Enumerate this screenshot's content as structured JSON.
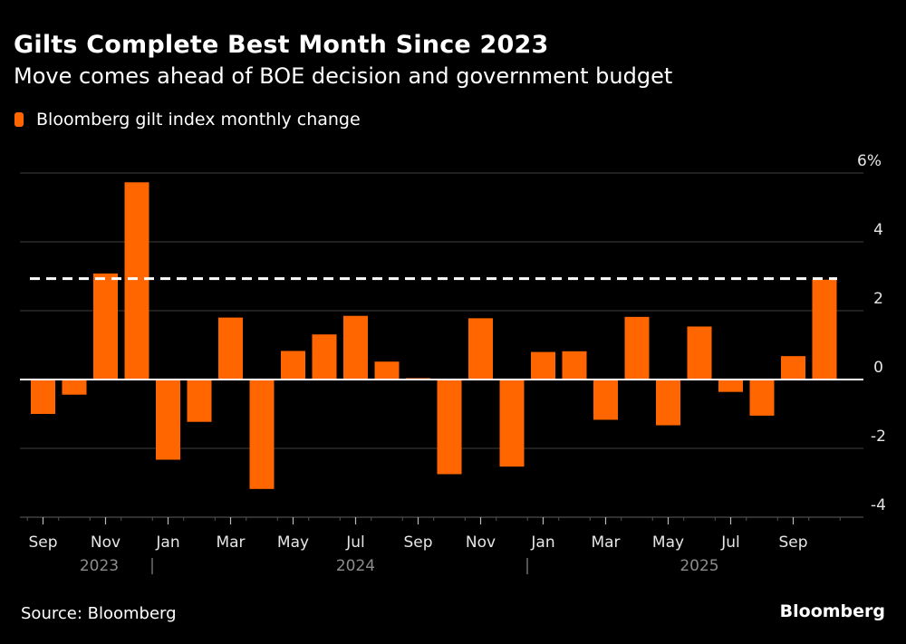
{
  "header": {
    "title": "Gilts Complete Best Month Since 2023",
    "subtitle": "Move comes ahead of BOE decision and government budget"
  },
  "legend": {
    "label": "Bloomberg gilt index monthly change",
    "color": "#ff6600"
  },
  "footer": {
    "source": "Source: Bloomberg",
    "brand": "Bloomberg"
  },
  "chart_data": {
    "type": "bar",
    "title": "Gilts Complete Best Month Since 2023",
    "subtitle": "Move comes ahead of BOE decision and government budget",
    "xlabel": "",
    "ylabel": "",
    "ylim": [
      -4,
      6
    ],
    "yticks": [
      6,
      4,
      2,
      0,
      -2,
      -4
    ],
    "ytick_labels": [
      "6%",
      "4",
      "2",
      "0",
      "-2",
      "-4"
    ],
    "grid": true,
    "legend_position": "top-left",
    "bar_color": "#ff6600",
    "categories": [
      "Sep 2023",
      "Oct 2023",
      "Nov 2023",
      "Dec 2023",
      "Jan 2024",
      "Feb 2024",
      "Mar 2024",
      "Apr 2024",
      "May 2024",
      "Jun 2024",
      "Jul 2024",
      "Aug 2024",
      "Sep 2024",
      "Oct 2024",
      "Nov 2024",
      "Dec 2024",
      "Jan 2025",
      "Feb 2025",
      "Mar 2025",
      "Apr 2025",
      "May 2025",
      "Jun 2025",
      "Jul 2025",
      "Aug 2025",
      "Sep 2025",
      "Oct 2025"
    ],
    "series": [
      {
        "name": "Bloomberg gilt index monthly change",
        "values": [
          -1.0,
          -0.44,
          3.08,
          5.73,
          -2.33,
          -1.23,
          1.8,
          -3.18,
          0.83,
          1.31,
          1.85,
          0.52,
          0.04,
          -2.75,
          1.78,
          -2.53,
          0.8,
          0.82,
          -1.17,
          1.82,
          -1.33,
          1.54,
          -0.36,
          -1.05,
          0.68,
          2.9
        ]
      }
    ],
    "reference_line": {
      "value": 2.93,
      "style": "dashed",
      "color": "#ffffff"
    },
    "xtick_labels": [
      {
        "index": 0,
        "label": "Sep"
      },
      {
        "index": 2,
        "label": "Nov"
      },
      {
        "index": 4,
        "label": "Jan"
      },
      {
        "index": 6,
        "label": "Mar"
      },
      {
        "index": 8,
        "label": "May"
      },
      {
        "index": 10,
        "label": "Jul"
      },
      {
        "index": 12,
        "label": "Sep"
      },
      {
        "index": 14,
        "label": "Nov"
      },
      {
        "index": 16,
        "label": "Jan"
      },
      {
        "index": 18,
        "label": "Mar"
      },
      {
        "index": 20,
        "label": "May"
      },
      {
        "index": 22,
        "label": "Jul"
      },
      {
        "index": 24,
        "label": "Sep"
      }
    ],
    "year_labels": [
      {
        "label": "2023",
        "center_index": 2
      },
      {
        "label": "2024",
        "center_index": 10
      },
      {
        "label": "2025",
        "center_index": 21
      }
    ],
    "year_separators": [
      3.5,
      15.5
    ]
  }
}
